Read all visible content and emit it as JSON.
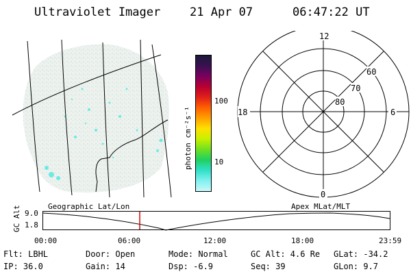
{
  "header": {
    "instrument": "Ultraviolet Imager",
    "date": "21 Apr 07",
    "time": "06:47:22 UT"
  },
  "colorbar": {
    "unit_label": "photon cm⁻²s⁻¹",
    "ticks": [
      "100",
      "10"
    ],
    "colors": [
      "#1a1a3a",
      "#3a1050",
      "#7a0060",
      "#b80030",
      "#e0201a",
      "#ff6000",
      "#ffa000",
      "#ffe000",
      "#c8f000",
      "#70e020",
      "#20d060",
      "#30e0c8",
      "#80f0f0",
      "#c8f8f8"
    ]
  },
  "polar_plot": {
    "mlt_labels": {
      "top": "12",
      "left": "18",
      "right": "6",
      "bottom": "0"
    },
    "lat_labels": [
      "60",
      "70",
      "80"
    ]
  },
  "timeline": {
    "left_label": "Geographic Lat/Lon",
    "right_label": "Apex MLat/MLT",
    "y_axis_title": "GC Alt",
    "y_ticks": [
      "9.0",
      "1.8"
    ],
    "x_ticks": [
      "00:00",
      "06:00",
      "12:00",
      "18:00",
      "23:59"
    ],
    "current_time_marker_color": "#d00000"
  },
  "status": {
    "flt": "Flt: LBHL",
    "ip": "IP: 36.0",
    "door": "Door: Open",
    "gain": "Gain: 14",
    "mode": "Mode: Normal",
    "dsp": "Dsp:    -6.9",
    "gc_alt": "GC Alt: 4.6 Re",
    "seq": "Seq: 39",
    "glat": "GLat: -34.2",
    "glon": "GLon:   9.7"
  }
}
